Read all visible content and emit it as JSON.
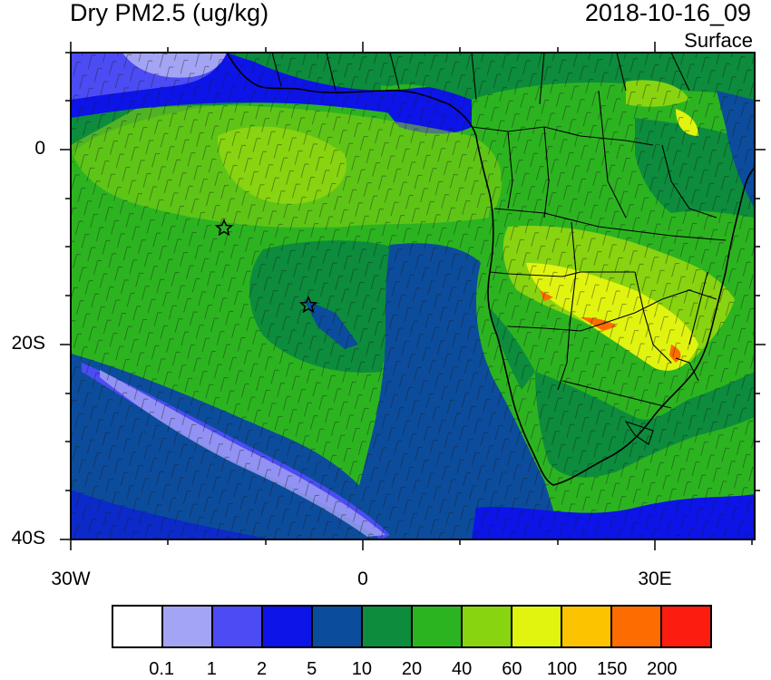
{
  "title": "Dry PM2.5 (ug/kg)",
  "datetime": "2018-10-16_09",
  "level": "Surface",
  "axes": {
    "y_ticks": [
      "0",
      "20S",
      "40S"
    ],
    "x_ticks": [
      "30W",
      "0",
      "30E"
    ]
  },
  "colorbar": {
    "colors": [
      "#ffffff",
      "#a4a4f4",
      "#4c4cf4",
      "#0c14e8",
      "#0c4c9c",
      "#0c8c3c",
      "#2cb420",
      "#88d410",
      "#e0f410",
      "#fcc400",
      "#fc6c00",
      "#fc1c10"
    ],
    "labels": [
      "0.1",
      "1",
      "2",
      "5",
      "10",
      "20",
      "40",
      "60",
      "100",
      "150",
      "200"
    ]
  },
  "markers": [
    {
      "name": "star-marker-1",
      "symbol": "star"
    },
    {
      "name": "star-marker-2",
      "symbol": "star"
    }
  ]
}
